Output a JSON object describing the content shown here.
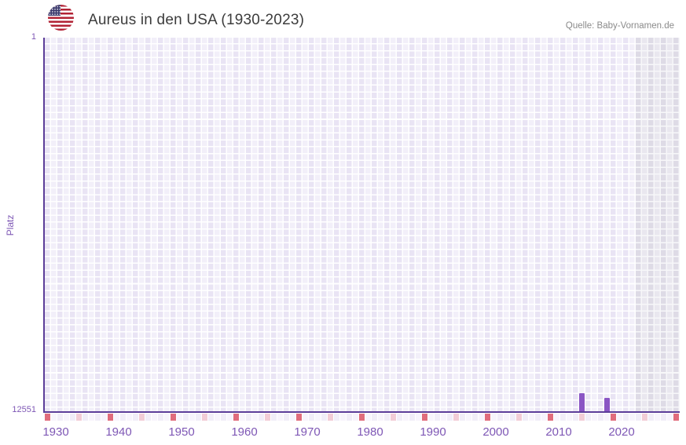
{
  "header": {
    "title": "Aureus in den USA (1930-2023)",
    "source": "Quelle: Baby-Vornamen.de",
    "flag_country": "USA"
  },
  "chart_data": {
    "type": "bar",
    "title": "Aureus in den USA (1930-2023)",
    "xlabel": "",
    "ylabel": "Platz",
    "y_axis": {
      "top_label": "1",
      "bottom_label": "12551",
      "min": 1,
      "max": 12551,
      "inverted": true
    },
    "x_axis": {
      "start_year": 1929,
      "end_year": 2029,
      "tick_years": [
        1930,
        1940,
        1950,
        1960,
        1970,
        1980,
        1990,
        2000,
        2010,
        2020
      ]
    },
    "series": [
      {
        "name": "Platz",
        "points": [
          {
            "year": 2014,
            "rank": 11950
          },
          {
            "year": 2018,
            "rank": 12100
          }
        ]
      }
    ],
    "future_band_start_year": 2023,
    "marker_strip": {
      "start_year": 1929,
      "end_year": 2029,
      "red_every": 10,
      "pink_offset": 5
    },
    "legend": null,
    "grid": true
  },
  "colors": {
    "bar": "#8a55c4",
    "axis": "#5c3d99",
    "tick_text": "#7e57b5",
    "strip_red": "#e06c7c",
    "strip_pink": "#f2ccd6",
    "strip_light_a": "#f1edf8",
    "strip_light_b": "#f7f4fc",
    "grid_col_dark": "#e9e4f4",
    "grid_col_light": "#f2eff9",
    "future_col_dark": "#dedbe6",
    "future_col_light": "#e9e7ef",
    "title_text": "#3c3c3c",
    "source_text": "#8a8a8a",
    "flag_red": "#b22234",
    "flag_blue": "#3c3b6e"
  }
}
